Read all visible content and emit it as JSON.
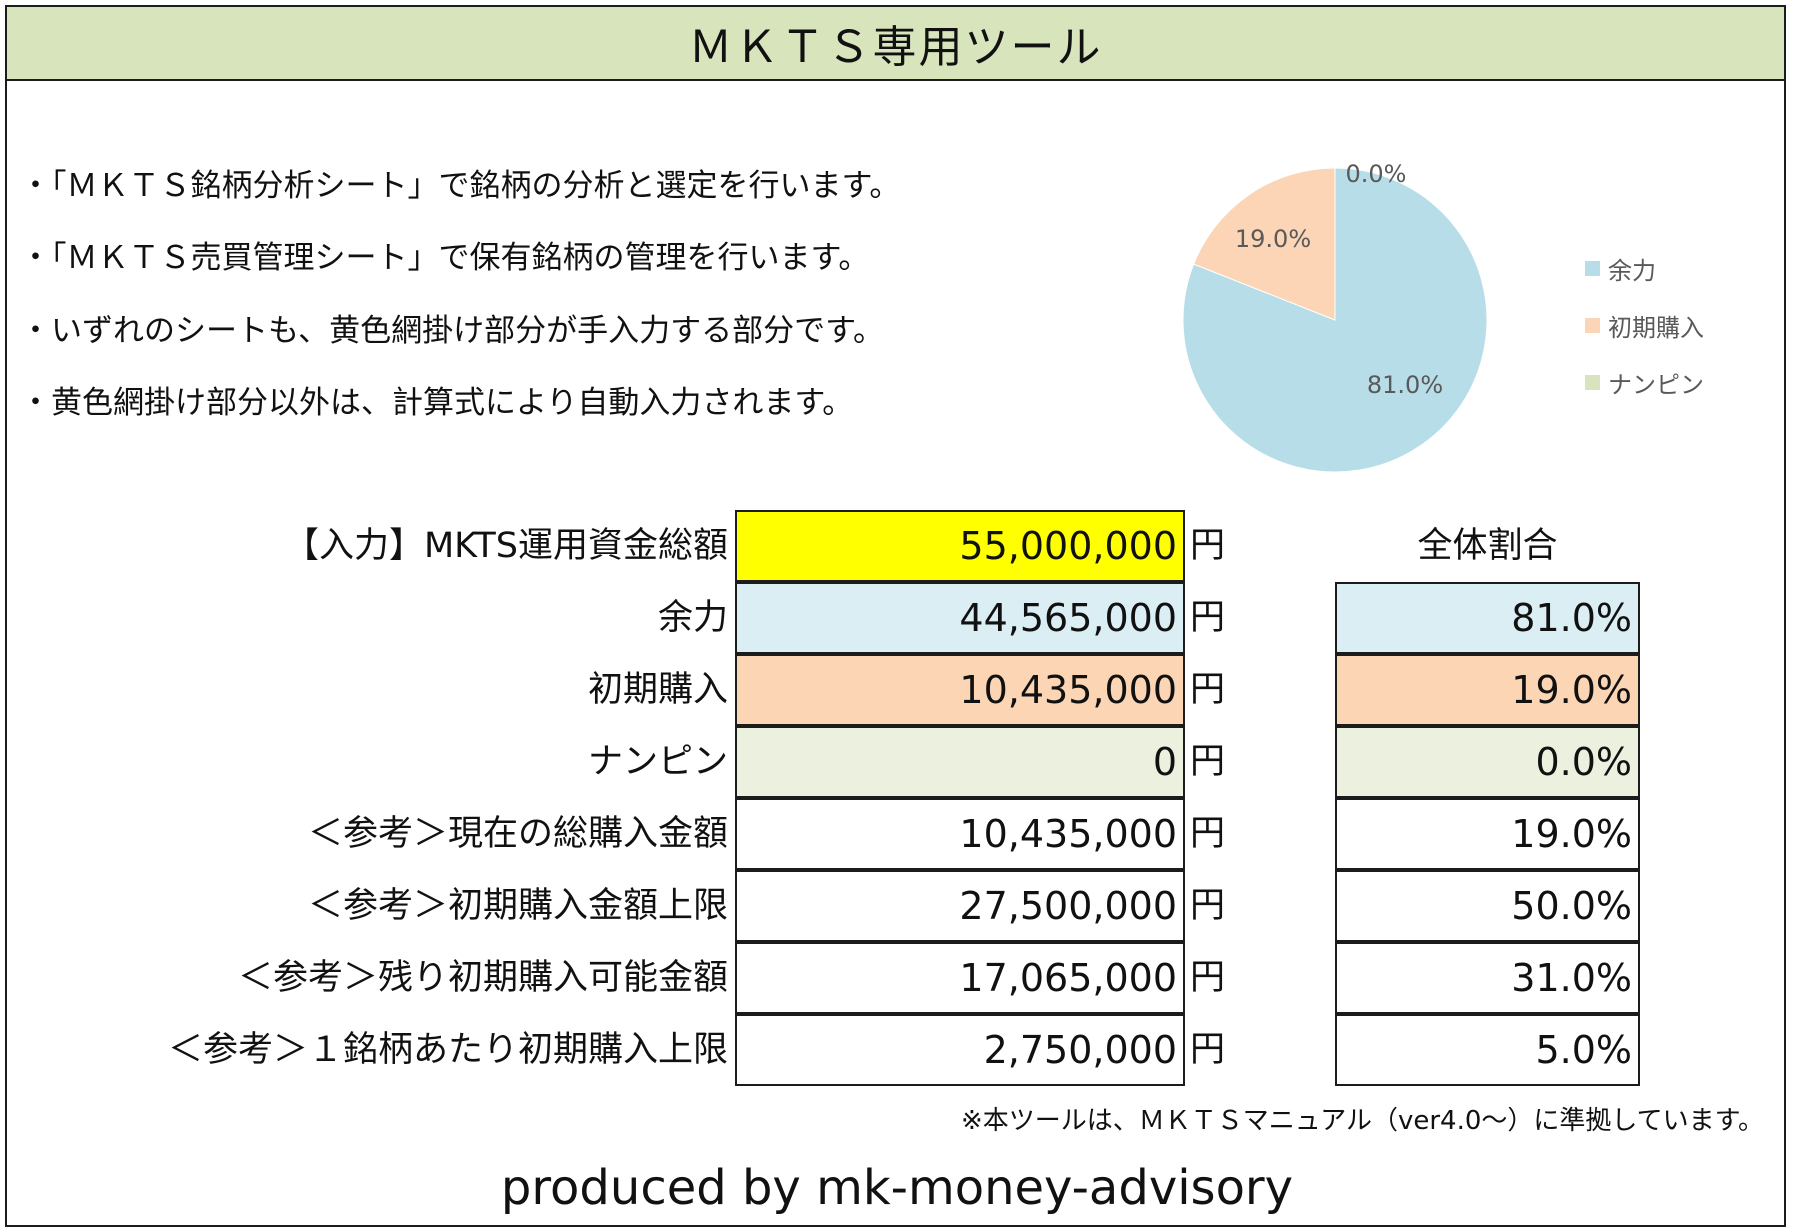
{
  "title": "ＭＫＴＳ専用ツール",
  "notes": [
    "・「ＭＫＴＳ銘柄分析シート」で銘柄の分析と選定を行います。",
    "・「ＭＫＴＳ売買管理シート」で保有銘柄の管理を行います。",
    "・いずれのシートも、黄色網掛け部分が手入力する部分です。",
    "・黄色網掛け部分以外は、計算式により自動入力されます。"
  ],
  "colors": {
    "title_bg": "#d8e4bc",
    "input_yellow": "#ffff00",
    "yoryoku": "#daeef3",
    "shoki": "#fcd5b4",
    "nanpin": "#ebf1de",
    "pie_yoryoku": "#b7dde8",
    "pie_shoki": "#fbd5b5",
    "pie_nanpin": "#d7e4bd"
  },
  "chart_data": {
    "type": "pie",
    "categories": [
      "余力",
      "初期購入",
      "ナンピン"
    ],
    "values": [
      81.0,
      19.0,
      0.0
    ],
    "data_labels": [
      "81.0%",
      "19.0%",
      "0.0%"
    ],
    "legend_position": "right"
  },
  "table": {
    "unit": "円",
    "pct_header": "全体割合",
    "rows": [
      {
        "label": "【入力】MKTS運用資金総額",
        "amount": "55,000,000",
        "pct": ""
      },
      {
        "label": "余力",
        "amount": "44,565,000",
        "pct": "81.0%"
      },
      {
        "label": "初期購入",
        "amount": "10,435,000",
        "pct": "19.0%"
      },
      {
        "label": "ナンピン",
        "amount": "0",
        "pct": "0.0%"
      },
      {
        "label": "＜参考＞現在の総購入金額",
        "amount": "10,435,000",
        "pct": "19.0%"
      },
      {
        "label": "＜参考＞初期購入金額上限",
        "amount": "27,500,000",
        "pct": "50.0%"
      },
      {
        "label": "＜参考＞残り初期購入可能金額",
        "amount": "17,065,000",
        "pct": "31.0%"
      },
      {
        "label": "＜参考＞１銘柄あたり初期購入上限",
        "amount": "2,750,000",
        "pct": "5.0%"
      }
    ]
  },
  "compliance_note": "※本ツールは、ＭＫＴＳマニュアル（ver4.0〜）に準拠しています。",
  "producer": "produced by mk-money-advisory"
}
